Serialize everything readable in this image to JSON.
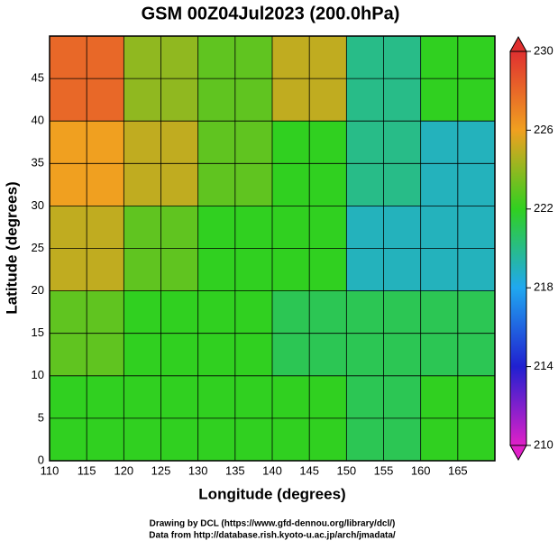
{
  "chart_data": {
    "type": "heatmap",
    "title": "GSM 00Z04Jul2023 (200.0hPa)",
    "x_label": "Longitude (degrees)",
    "y_label": "Latitude  (degrees)",
    "xlim": [
      110,
      170
    ],
    "ylim": [
      0,
      50
    ],
    "xticks": [
      110,
      115,
      120,
      125,
      130,
      135,
      140,
      145,
      150,
      155,
      160,
      165
    ],
    "yticks": [
      0,
      5,
      10,
      15,
      20,
      25,
      30,
      35,
      40,
      45
    ],
    "grid": true,
    "lon": [
      115,
      125,
      135,
      145,
      155,
      165
    ],
    "lat": [
      45,
      35,
      25,
      15,
      5
    ],
    "cell_size": 10,
    "values": [
      [
        228,
        224,
        223,
        225,
        220,
        222
      ],
      [
        226,
        225,
        223,
        222,
        220,
        219
      ],
      [
        225,
        223,
        222,
        222,
        219,
        219
      ],
      [
        223,
        222,
        222,
        221,
        221,
        221
      ],
      [
        222,
        222,
        222,
        222,
        221,
        222
      ]
    ],
    "colorbar": {
      "lim": [
        210,
        230
      ],
      "ticks": [
        210,
        214,
        218,
        222,
        226,
        230
      ]
    },
    "colormap": [
      {
        "value": 210,
        "color": "#e020c8"
      },
      {
        "value": 214,
        "color": "#2020d0"
      },
      {
        "value": 218,
        "color": "#20a8f0"
      },
      {
        "value": 222,
        "color": "#30d020"
      },
      {
        "value": 226,
        "color": "#f0a020"
      },
      {
        "value": 230,
        "color": "#e03030"
      }
    ],
    "credits": [
      "Drawing by DCL (https://www.gfd-dennou.org/library/dcl/)",
      "Data from http://database.rish.kyoto-u.ac.jp/arch/jmadata/"
    ]
  }
}
